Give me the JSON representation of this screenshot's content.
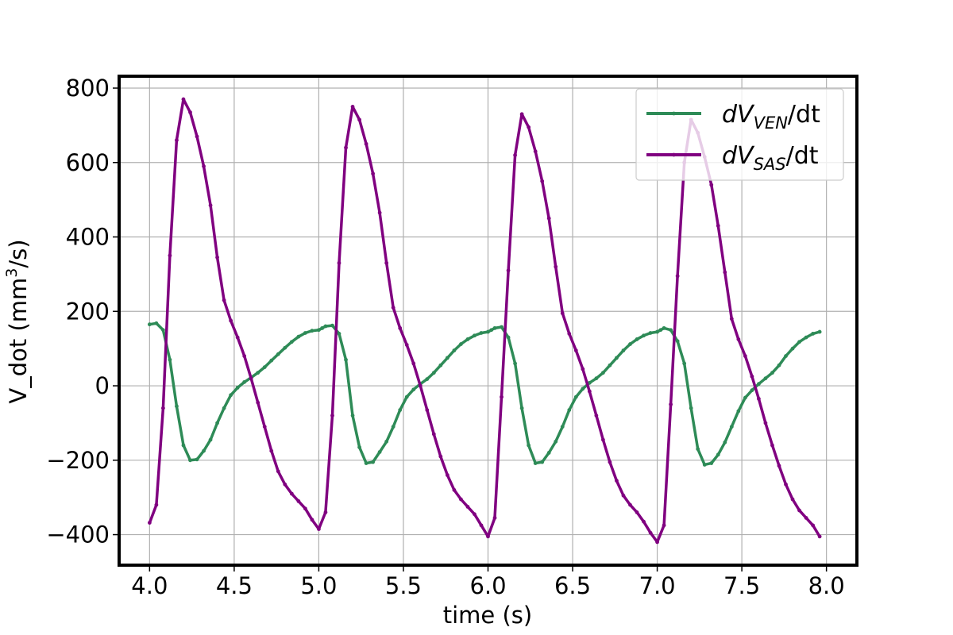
{
  "chart_data": {
    "type": "line",
    "xlabel": "time (s)",
    "ylabel_prefix": "V_dot (mm",
    "ylabel_sup": "3",
    "ylabel_suffix": "/s)",
    "xlim": [
      3.82,
      8.18
    ],
    "ylim": [
      -482,
      832
    ],
    "xticks": [
      4.0,
      4.5,
      5.0,
      5.5,
      6.0,
      6.5,
      7.0,
      7.5,
      8.0
    ],
    "xtick_labels": [
      "4.0",
      "4.5",
      "5.0",
      "5.5",
      "6.0",
      "6.5",
      "7.0",
      "7.5",
      "8.0"
    ],
    "yticks": [
      -400,
      -200,
      0,
      200,
      400,
      600,
      800
    ],
    "ytick_labels": [
      "−400",
      "−200",
      "0",
      "200",
      "400",
      "600",
      "800"
    ],
    "grid": true,
    "legend_position": "top-right",
    "series": [
      {
        "name": "dV_VEN/dt",
        "legend_main": "dV",
        "legend_sub": "VEN",
        "legend_tail": "/dt",
        "color": "#2e8b57",
        "x": [
          4.0,
          4.04,
          4.08,
          4.12,
          4.16,
          4.2,
          4.24,
          4.28,
          4.32,
          4.36,
          4.4,
          4.44,
          4.48,
          4.52,
          4.56,
          4.6,
          4.64,
          4.68,
          4.72,
          4.76,
          4.8,
          4.84,
          4.88,
          4.92,
          4.96,
          5.0,
          5.02,
          5.04,
          5.08,
          5.12,
          5.16,
          5.2,
          5.24,
          5.28,
          5.32,
          5.36,
          5.4,
          5.44,
          5.48,
          5.52,
          5.56,
          5.6,
          5.64,
          5.68,
          5.72,
          5.76,
          5.8,
          5.84,
          5.88,
          5.92,
          5.96,
          6.0,
          6.02,
          6.04,
          6.08,
          6.12,
          6.16,
          6.2,
          6.24,
          6.28,
          6.32,
          6.36,
          6.4,
          6.44,
          6.48,
          6.52,
          6.56,
          6.6,
          6.64,
          6.68,
          6.72,
          6.76,
          6.8,
          6.84,
          6.88,
          6.92,
          6.96,
          7.0,
          7.02,
          7.04,
          7.08,
          7.12,
          7.16,
          7.2,
          7.24,
          7.28,
          7.32,
          7.36,
          7.4,
          7.44,
          7.48,
          7.52,
          7.56,
          7.6,
          7.64,
          7.68,
          7.72,
          7.76,
          7.8,
          7.84,
          7.88,
          7.92,
          7.96
        ],
        "values": [
          165,
          168,
          150,
          70,
          -55,
          -160,
          -200,
          -198,
          -175,
          -145,
          -100,
          -60,
          -25,
          -5,
          10,
          22,
          35,
          50,
          68,
          85,
          102,
          118,
          132,
          142,
          148,
          150,
          155,
          160,
          162,
          140,
          70,
          -80,
          -165,
          -208,
          -205,
          -178,
          -150,
          -110,
          -65,
          -30,
          -10,
          5,
          18,
          35,
          55,
          75,
          95,
          112,
          125,
          135,
          142,
          145,
          150,
          155,
          158,
          130,
          60,
          -60,
          -160,
          -208,
          -205,
          -180,
          -150,
          -110,
          -65,
          -30,
          -8,
          8,
          20,
          35,
          55,
          75,
          95,
          112,
          125,
          135,
          142,
          145,
          150,
          155,
          150,
          120,
          60,
          -60,
          -170,
          -212,
          -208,
          -185,
          -152,
          -110,
          -68,
          -32,
          -12,
          5,
          20,
          35,
          55,
          80,
          100,
          118,
          130,
          140,
          145
        ]
      },
      {
        "name": "dV_SAS/dt",
        "legend_main": "dV",
        "legend_sub": "SAS",
        "legend_tail": "/dt",
        "color": "#800080",
        "x": [
          4.0,
          4.04,
          4.08,
          4.12,
          4.16,
          4.2,
          4.24,
          4.28,
          4.32,
          4.36,
          4.4,
          4.44,
          4.48,
          4.52,
          4.56,
          4.6,
          4.64,
          4.68,
          4.72,
          4.76,
          4.8,
          4.84,
          4.88,
          4.92,
          4.96,
          5.0,
          5.04,
          5.08,
          5.12,
          5.16,
          5.2,
          5.24,
          5.28,
          5.32,
          5.36,
          5.4,
          5.44,
          5.48,
          5.52,
          5.56,
          5.6,
          5.64,
          5.68,
          5.72,
          5.76,
          5.8,
          5.84,
          5.88,
          5.92,
          5.96,
          6.0,
          6.04,
          6.08,
          6.12,
          6.16,
          6.2,
          6.24,
          6.28,
          6.32,
          6.36,
          6.4,
          6.44,
          6.48,
          6.52,
          6.56,
          6.6,
          6.64,
          6.68,
          6.72,
          6.76,
          6.8,
          6.84,
          6.88,
          6.92,
          6.96,
          7.0,
          7.04,
          7.08,
          7.12,
          7.16,
          7.2,
          7.24,
          7.28,
          7.32,
          7.36,
          7.4,
          7.44,
          7.48,
          7.52,
          7.56,
          7.6,
          7.64,
          7.68,
          7.72,
          7.76,
          7.8,
          7.84,
          7.88,
          7.92,
          7.96
        ],
        "values": [
          -368,
          -320,
          -60,
          350,
          660,
          770,
          735,
          670,
          590,
          485,
          345,
          230,
          175,
          130,
          80,
          20,
          -45,
          -110,
          -175,
          -230,
          -265,
          -290,
          -310,
          -330,
          -360,
          -385,
          -340,
          -80,
          330,
          640,
          750,
          715,
          650,
          570,
          465,
          330,
          210,
          155,
          110,
          60,
          0,
          -65,
          -130,
          -190,
          -240,
          -280,
          -305,
          -325,
          -345,
          -375,
          -405,
          -355,
          -30,
          310,
          620,
          730,
          695,
          630,
          550,
          450,
          320,
          195,
          140,
          95,
          45,
          -15,
          -80,
          -145,
          -205,
          -255,
          -295,
          -320,
          -340,
          -365,
          -395,
          -420,
          -375,
          -50,
          295,
          600,
          715,
          680,
          615,
          540,
          430,
          305,
          180,
          125,
          80,
          25,
          -35,
          -100,
          -160,
          -215,
          -265,
          -305,
          -335,
          -355,
          -375,
          -405
        ]
      }
    ]
  }
}
